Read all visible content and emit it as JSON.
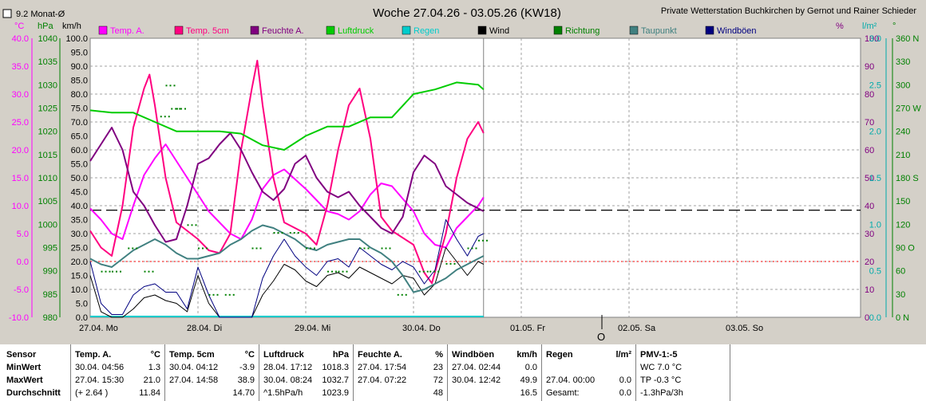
{
  "header": {
    "title": "Woche 27.04.26 - 03.05.26 (KW18)",
    "credit": "Private Wetterstation Buchkirchen by Gernot und Rainer Schieder",
    "checkbox_label": "9.2 Monat-Ø"
  },
  "axes": {
    "left_units": {
      "temp": "°C",
      "pressure": "hPa",
      "wind": "km/h"
    },
    "right_units": {
      "humidity": "%",
      "rain": "l/m²",
      "direction": "°"
    },
    "temp_ticks": [
      "40.0",
      "35.0",
      "30.0",
      "25.0",
      "20.0",
      "15.0",
      "10.0",
      "5.0",
      "0.0",
      "-5.0",
      "-10.0"
    ],
    "pressure_ticks": [
      "1040",
      "1035",
      "1030",
      "1025",
      "1020",
      "1015",
      "1010",
      "1005",
      "1000",
      "995",
      "990",
      "985",
      "980"
    ],
    "wind_ticks": [
      "100.0",
      "95.0",
      "90.0",
      "85.0",
      "80.0",
      "75.0",
      "70.0",
      "65.0",
      "60.0",
      "55.0",
      "50.0",
      "45.0",
      "40.0",
      "35.0",
      "30.0",
      "25.0",
      "20.0",
      "15.0",
      "10.0",
      "5.0",
      "0.0"
    ],
    "humidity_ticks": [
      "100",
      "90",
      "80",
      "70",
      "60",
      "50",
      "40",
      "30",
      "20",
      "10",
      "0"
    ],
    "rain_ticks": [
      "3.0",
      "2.5",
      "2.0",
      "1.5",
      "1.0",
      "0.5",
      "0.0"
    ],
    "direction_ticks": [
      "360 N",
      "330",
      "300",
      "270 W",
      "240",
      "210",
      "180 S",
      "150",
      "120",
      "90 O",
      "60",
      "30",
      "0 N"
    ],
    "day_labels": [
      "27.04. Mo",
      "28.04. Di",
      "29.04. Mi",
      "30.04. Do",
      "01.05. Fr",
      "02.05. Sa",
      "03.05. So"
    ],
    "marker_label": "O"
  },
  "legend": [
    {
      "name": "Temp. A.",
      "color": "#ff00ff"
    },
    {
      "name": "Temp. 5cm",
      "color": "#ff0080"
    },
    {
      "name": "Feuchte A.",
      "color": "#800080"
    },
    {
      "name": "Luftdruck",
      "color": "#00cc00"
    },
    {
      "name": "Regen",
      "color": "#00cccc"
    },
    {
      "name": "Wind",
      "color": "#000000"
    },
    {
      "name": "Richtung",
      "color": "#008000"
    },
    {
      "name": "Taupunkt",
      "color": "#408080"
    },
    {
      "name": "Windböen",
      "color": "#000080"
    }
  ],
  "chart_data": {
    "type": "line",
    "x_unit": "day index from 27.04. 00:00",
    "ylim_temp": [
      -10,
      40
    ],
    "ylim_pressure": [
      980,
      1040
    ],
    "ylim_wind": [
      0,
      100
    ],
    "ylim_humidity": [
      0,
      100
    ],
    "ylim_rain": [
      0,
      3
    ],
    "ylim_direction": [
      0,
      360
    ],
    "month_avg_temp": 9.2,
    "series": [
      {
        "name": "Temp. A.",
        "axis": "temp",
        "x": [
          0,
          0.1,
          0.2,
          0.3,
          0.4,
          0.5,
          0.6,
          0.7,
          0.8,
          1,
          1.1,
          1.2,
          1.3,
          1.4,
          1.5,
          1.6,
          1.7,
          1.8,
          2,
          2.1,
          2.2,
          2.3,
          2.4,
          2.5,
          2.6,
          2.7,
          2.8,
          3,
          3.1,
          3.2,
          3.3,
          3.4,
          3.5,
          3.6,
          3.65
        ],
        "y": [
          9.5,
          7.5,
          5.0,
          4.0,
          10.0,
          15.5,
          18.5,
          21.0,
          18.0,
          12.0,
          9.0,
          7.0,
          5.0,
          4.0,
          7.5,
          13.0,
          15.5,
          16.5,
          13.0,
          11.0,
          9.0,
          8.5,
          7.5,
          9.0,
          12.0,
          14.0,
          13.5,
          9.0,
          5.0,
          3.0,
          2.5,
          6.0,
          8.0,
          10.0,
          11.5
        ]
      },
      {
        "name": "Temp. 5cm",
        "axis": "temp",
        "x": [
          0,
          0.1,
          0.2,
          0.3,
          0.4,
          0.5,
          0.55,
          0.6,
          0.7,
          0.8,
          1,
          1.1,
          1.2,
          1.3,
          1.4,
          1.5,
          1.55,
          1.6,
          1.7,
          1.8,
          2,
          2.1,
          2.2,
          2.3,
          2.4,
          2.5,
          2.6,
          2.7,
          2.8,
          3,
          3.1,
          3.17,
          3.3,
          3.4,
          3.5,
          3.6,
          3.65
        ],
        "y": [
          5.5,
          2.5,
          1.0,
          10.0,
          24.0,
          31.0,
          33.5,
          28.0,
          15.0,
          7.0,
          4.0,
          2.0,
          1.5,
          5.0,
          20.0,
          31.0,
          36.0,
          28.0,
          15.0,
          7.0,
          5.0,
          3.0,
          10.0,
          20.0,
          28.0,
          31.0,
          22.0,
          8.0,
          5.5,
          3.0,
          -2.0,
          -3.9,
          5.0,
          15.0,
          22.0,
          25.0,
          23.0
        ]
      },
      {
        "name": "Feuchte A.",
        "axis": "humidity",
        "x": [
          0,
          0.1,
          0.2,
          0.3,
          0.4,
          0.5,
          0.6,
          0.7,
          0.8,
          0.9,
          1,
          1.1,
          1.2,
          1.3,
          1.4,
          1.5,
          1.6,
          1.7,
          1.8,
          1.9,
          2,
          2.1,
          2.2,
          2.3,
          2.4,
          2.5,
          2.6,
          2.7,
          2.8,
          2.9,
          3,
          3.1,
          3.2,
          3.3,
          3.4,
          3.5,
          3.6,
          3.65
        ],
        "y": [
          56,
          62,
          68,
          60,
          45,
          40,
          33,
          27,
          28,
          40,
          55,
          57,
          62,
          66,
          60,
          52,
          45,
          42,
          46,
          55,
          58,
          50,
          45,
          43,
          45,
          40,
          36,
          32,
          30,
          36,
          52,
          58,
          55,
          47,
          44,
          41,
          39,
          38
        ]
      },
      {
        "name": "Luftdruck",
        "axis": "pressure",
        "x": [
          0,
          0.2,
          0.4,
          0.6,
          0.8,
          1,
          1.2,
          1.4,
          1.6,
          1.8,
          2,
          2.2,
          2.4,
          2.6,
          2.8,
          3,
          3.2,
          3.4,
          3.6,
          3.65
        ],
        "y": [
          1024.5,
          1024,
          1024,
          1022,
          1020,
          1020,
          1020,
          1019.5,
          1017,
          1016,
          1019,
          1021,
          1021,
          1023,
          1023,
          1028,
          1029,
          1030.5,
          1030,
          1029
        ]
      },
      {
        "name": "Wind",
        "axis": "wind",
        "x": [
          0,
          0.1,
          0.2,
          0.3,
          0.4,
          0.5,
          0.6,
          0.7,
          0.8,
          0.9,
          1,
          1.1,
          1.2,
          1.3,
          1.4,
          1.5,
          1.6,
          1.7,
          1.8,
          1.9,
          2,
          2.1,
          2.2,
          2.3,
          2.4,
          2.5,
          2.6,
          2.7,
          2.8,
          2.9,
          3,
          3.1,
          3.2,
          3.3,
          3.4,
          3.5,
          3.6,
          3.65
        ],
        "y": [
          15,
          2,
          0,
          0,
          3,
          7,
          8,
          6,
          5,
          2,
          15,
          5,
          0,
          0,
          0,
          0,
          8,
          13,
          19,
          17,
          13,
          11,
          15,
          16,
          14,
          18,
          16,
          14,
          12,
          15,
          14,
          8,
          12,
          25,
          20,
          15,
          20,
          19
        ]
      },
      {
        "name": "Windböen",
        "axis": "wind",
        "x": [
          0,
          0.1,
          0.2,
          0.3,
          0.4,
          0.5,
          0.6,
          0.7,
          0.8,
          0.9,
          1,
          1.1,
          1.2,
          1.3,
          1.4,
          1.5,
          1.6,
          1.7,
          1.8,
          1.9,
          2,
          2.1,
          2.2,
          2.3,
          2.4,
          2.5,
          2.6,
          2.7,
          2.8,
          2.9,
          3,
          3.1,
          3.2,
          3.3,
          3.4,
          3.5,
          3.6,
          3.65
        ],
        "y": [
          20,
          5,
          1,
          1,
          8,
          11,
          12,
          9,
          9,
          3,
          18,
          8,
          0,
          0,
          0,
          0,
          14,
          22,
          28,
          22,
          18,
          15,
          20,
          21,
          18,
          25,
          22,
          19,
          17,
          20,
          18,
          12,
          17,
          35,
          28,
          22,
          29,
          30
        ]
      },
      {
        "name": "Taupunkt",
        "axis": "temp",
        "x": [
          0,
          0.1,
          0.2,
          0.3,
          0.4,
          0.5,
          0.6,
          0.7,
          0.8,
          0.9,
          1,
          1.1,
          1.2,
          1.3,
          1.4,
          1.5,
          1.6,
          1.7,
          1.8,
          1.9,
          2,
          2.1,
          2.2,
          2.3,
          2.4,
          2.5,
          2.6,
          2.7,
          2.8,
          2.9,
          3,
          3.1,
          3.2,
          3.3,
          3.4,
          3.5,
          3.6,
          3.65
        ],
        "y": [
          0.5,
          -0.5,
          -1.0,
          0.5,
          2.0,
          3.0,
          4.0,
          3.0,
          1.5,
          0.5,
          0.5,
          1.0,
          1.5,
          3.0,
          4.0,
          5.5,
          6.5,
          6.0,
          5.0,
          4.0,
          2.5,
          2.0,
          3.0,
          3.5,
          4.0,
          4.0,
          2.5,
          1.5,
          0.0,
          -2.5,
          -5.5,
          -5.0,
          -4.0,
          -3.0,
          -1.5,
          -0.5,
          0.5,
          1.0
        ]
      }
    ],
    "direction_points": {
      "x": [
        0.1,
        0.2,
        0.35,
        0.5,
        0.65,
        0.7,
        0.75,
        0.8,
        0.9,
        1.0,
        1.1,
        1.25,
        1.5,
        1.7,
        1.85,
        2.0,
        2.2,
        2.3,
        2.5,
        2.7,
        2.85,
        3.05,
        3.15,
        3.3,
        3.5,
        3.6
      ],
      "y": [
        60,
        60,
        90,
        60,
        260,
        300,
        270,
        270,
        120,
        90,
        30,
        30,
        90,
        110,
        110,
        90,
        60,
        60,
        90,
        90,
        30,
        60,
        60,
        70,
        90,
        100
      ]
    },
    "reference_lines": {
      "month_avg_temp": 9.2,
      "zero_temp": 0.0
    },
    "rain_values": [
      0,
      0,
      0,
      0
    ],
    "data_end_day": 3.65
  },
  "stats": {
    "headers": {
      "sensor": "Sensor",
      "temp_a": "Temp. A.",
      "temp_a_unit": "°C",
      "temp_5cm": "Temp. 5cm",
      "temp_5cm_unit": "°C",
      "pressure": "Luftdruck",
      "pressure_unit": "hPa",
      "humidity": "Feuchte A.",
      "humidity_unit": "%",
      "gusts": "Windböen",
      "gusts_unit": "km/h",
      "rain": "Regen",
      "rain_unit": "l/m²",
      "pmv": "PMV-1:-5"
    },
    "rows": {
      "min": "MinWert",
      "max": "MaxWert",
      "avg": "Durchschnitt"
    },
    "temp_a": {
      "min_time": "30.04.  04:56",
      "min_val": "1.3",
      "max_time": "27.04.  15:30",
      "max_val": "21.0",
      "avg_note": "(+ 2.64 )",
      "avg_val": "11.84"
    },
    "temp_5cm": {
      "min_time": "30.04.  04:12",
      "min_val": "-3.9",
      "max_time": "27.04.  14:58",
      "max_val": "38.9",
      "avg_val": "14.70"
    },
    "pressure": {
      "min_time": "28.04.  17:12",
      "min_val": "1018.3",
      "max_time": "30.04.  08:24",
      "max_val": "1032.7",
      "avg_note": "^1.5hPa/h",
      "avg_val": "1023.9"
    },
    "humidity": {
      "min_time": "27.04.  17:54",
      "min_val": "23",
      "max_time": "27.04.  07:22",
      "max_val": "72",
      "avg_val": "48"
    },
    "gusts": {
      "min_time": "27.04.  02:44",
      "min_val": "0.0",
      "max_time": "30.04.  12:42",
      "max_val": "49.9",
      "avg_val": "16.5"
    },
    "rain": {
      "max_time": "27.04.  00:00",
      "max_val": "0.0",
      "avg_label": "Gesamt:",
      "avg_val": "0.0"
    },
    "pmv": {
      "min_text": "WC 7.0 °C",
      "max_text": "TP -0.3 °C",
      "avg_text": "-1.3hPa/3h"
    }
  }
}
